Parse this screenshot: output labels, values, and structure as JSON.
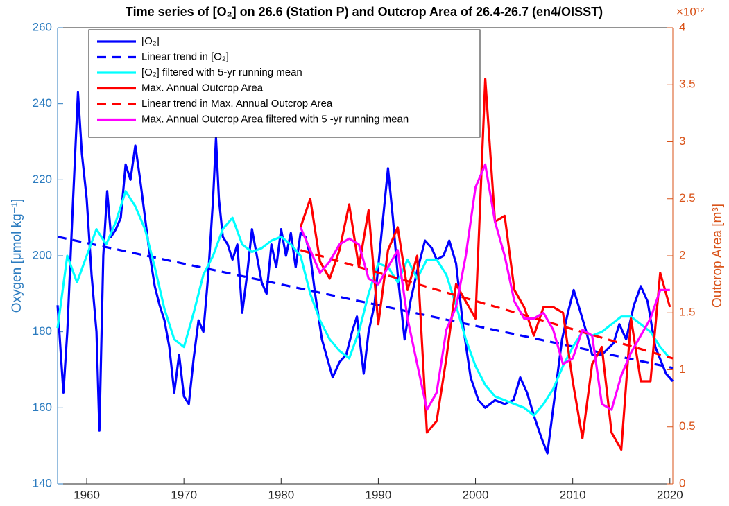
{
  "chart_data": {
    "type": "line",
    "title": "Time series of [O₂] on 26.6 (Station P) and Outcrop Area of 26.4-26.7 (en4/OISST)",
    "y_label": "Oxygen [μmol kg⁻¹]",
    "y2_label": "Outcrop Area [m³]",
    "y2_multiplier": "×10¹²",
    "xlim": [
      1957,
      2020.3
    ],
    "xticks": [
      1960,
      1970,
      1980,
      1990,
      2000,
      2010,
      2020
    ],
    "ylim": [
      140,
      260
    ],
    "yticks": [
      140,
      160,
      180,
      200,
      220,
      240,
      260
    ],
    "y2lim": [
      0,
      4
    ],
    "y2ticks": [
      0,
      0.5,
      1,
      1.5,
      2,
      2.5,
      3,
      3.5,
      4
    ],
    "legend": "top-left",
    "series": [
      {
        "name": "[O₂]",
        "color": "#0000ff",
        "line_style": "solid",
        "x": [
          1957.0,
          1957.6,
          1958.0,
          1958.6,
          1959.1,
          1959.5,
          1960.0,
          1960.5,
          1961.0,
          1961.3,
          1961.7,
          1962.1,
          1962.5,
          1963.0,
          1963.5,
          1964.0,
          1964.5,
          1965.0,
          1965.5,
          1966.0,
          1966.5,
          1967.0,
          1967.5,
          1968.0,
          1968.5,
          1969.0,
          1969.5,
          1970.0,
          1970.5,
          1971.0,
          1971.5,
          1972.0,
          1972.5,
          1973.0,
          1973.3,
          1973.6,
          1974.0,
          1974.5,
          1975.0,
          1975.5,
          1976.0,
          1976.5,
          1977.0,
          1977.5,
          1978.0,
          1978.5,
          1979.0,
          1979.5,
          1980.0,
          1980.5,
          1981.0,
          1981.5,
          1982.0,
          1982.5,
          1983.0,
          1983.5,
          1984.2,
          1985.3,
          1986.0,
          1986.7,
          1987.3,
          1987.8,
          1988.5,
          1989.0,
          1989.6,
          1990.3,
          1991.0,
          1991.5,
          1992.0,
          1992.7,
          1993.3,
          1994.0,
          1994.8,
          1995.5,
          1996.0,
          1996.7,
          1997.3,
          1998.0,
          1998.7,
          1999.5,
          2000.3,
          2001.0,
          2002.0,
          2003.0,
          2003.9,
          2004.6,
          2005.3,
          2006.0,
          2006.8,
          2007.4,
          2008.0,
          2008.9,
          2009.5,
          2010.1,
          2010.7,
          2011.4,
          2012.0,
          2013.0,
          2014.2,
          2014.8,
          2015.5,
          2016.3,
          2017.0,
          2017.7,
          2018.5,
          2019.6,
          2020.3
        ],
        "values": [
          187,
          164,
          180,
          215,
          243,
          227,
          215,
          195,
          180,
          154,
          200,
          217,
          205,
          207,
          210,
          224,
          220,
          229,
          220,
          210,
          200,
          192,
          187,
          183,
          176,
          164,
          174,
          163,
          161,
          173,
          183,
          180,
          195,
          215,
          231,
          215,
          205,
          203,
          199,
          203,
          185,
          195,
          207,
          200,
          193,
          190,
          203,
          197,
          207,
          200,
          206,
          197,
          206,
          205,
          200,
          190,
          178,
          168,
          172,
          174,
          180,
          184,
          169,
          180,
          187,
          205,
          223,
          210,
          195,
          178,
          188,
          196,
          204,
          202,
          199,
          200,
          204,
          198,
          182,
          168,
          162,
          160,
          162,
          161,
          162,
          168,
          164,
          158,
          152,
          148,
          160,
          178,
          185,
          191,
          186,
          180,
          174,
          174,
          177,
          182,
          178,
          187,
          192,
          188,
          176,
          169,
          167
        ]
      },
      {
        "name": "Linear trend in [O₂]",
        "color": "#0000ff",
        "line_style": "dashed",
        "x": [
          1957,
          2020.3
        ],
        "values": [
          205,
          170.5
        ]
      },
      {
        "name": "[O₂] filtered with 5-yr running mean",
        "color": "#00ffff",
        "line_style": "solid",
        "x": [
          1957,
          1958,
          1959,
          1960,
          1961,
          1962,
          1963,
          1964,
          1965,
          1966,
          1967,
          1968,
          1969,
          1970,
          1971,
          1972,
          1973,
          1974,
          1975,
          1976,
          1977,
          1978,
          1979,
          1980,
          1981,
          1982,
          1983,
          1984,
          1985,
          1986,
          1987,
          1988,
          1989,
          1990,
          1991,
          1992,
          1993,
          1994,
          1995,
          1996,
          1997,
          1998,
          1999,
          2000,
          2001,
          2002,
          2003,
          2004,
          2005,
          2006,
          2007,
          2008,
          2009,
          2010,
          2011,
          2012,
          2013,
          2014,
          2015,
          2016,
          2017,
          2018,
          2019,
          2020
        ],
        "values": [
          181,
          200,
          193,
          200,
          207,
          203,
          209,
          217,
          213,
          207,
          197,
          186,
          178,
          176,
          185,
          195,
          200,
          207,
          210,
          203,
          201,
          202,
          204,
          205,
          203,
          200,
          190,
          183,
          178,
          175,
          173,
          180,
          190,
          198,
          197,
          193,
          199,
          194,
          199,
          199,
          195,
          187,
          178,
          171,
          166,
          163,
          162,
          161,
          160,
          158,
          161,
          165,
          171,
          176,
          180,
          179,
          180,
          182,
          184,
          184,
          182,
          180,
          176,
          173
        ]
      },
      {
        "name": "Max. Annual Outcrop Area",
        "color": "#ff0000",
        "line_style": "solid",
        "axis": "y2",
        "x": [
          1982,
          1983,
          1984,
          1985,
          1986,
          1987,
          1988,
          1989,
          1990,
          1991,
          1992,
          1993,
          1994,
          1995,
          1996,
          1997,
          1998,
          1999,
          2000,
          2001,
          2002,
          2003,
          2004,
          2005,
          2006,
          2007,
          2008,
          2009,
          2010,
          2011,
          2012,
          2013,
          2014,
          2015,
          2016,
          2017,
          2018,
          2019,
          2020
        ],
        "values": [
          2.25,
          2.5,
          1.95,
          1.8,
          2.05,
          2.45,
          1.9,
          2.4,
          1.4,
          2.05,
          2.25,
          1.7,
          2.0,
          0.45,
          0.55,
          1.1,
          1.75,
          1.6,
          1.45,
          3.55,
          2.3,
          2.35,
          1.7,
          1.55,
          1.3,
          1.55,
          1.55,
          1.5,
          0.9,
          0.4,
          1.05,
          1.2,
          0.45,
          0.3,
          1.45,
          0.9,
          0.9,
          1.85,
          1.55
        ]
      },
      {
        "name": "Linear trend in Max. Annual Outcrop Area",
        "color": "#ff0000",
        "line_style": "dashed",
        "axis": "y2",
        "x": [
          1982,
          2020.3
        ],
        "values": [
          2.05,
          1.1
        ]
      },
      {
        "name": "Max. Annual Outcrop Area filtered with 5 -yr running mean",
        "color": "#ff00ff",
        "line_style": "solid",
        "axis": "y2",
        "x": [
          1982,
          1983,
          1984,
          1985,
          1986,
          1987,
          1988,
          1989,
          1990,
          1991,
          1992,
          1993,
          1994,
          1995,
          1996,
          1997,
          1998,
          1999,
          2000,
          2001,
          2002,
          2003,
          2004,
          2005,
          2006,
          2007,
          2008,
          2009,
          2010,
          2011,
          2012,
          2013,
          2014,
          2015,
          2016,
          2017,
          2018,
          2019,
          2020
        ],
        "values": [
          2.25,
          2.05,
          1.85,
          1.95,
          2.1,
          2.15,
          2.1,
          1.8,
          1.75,
          1.9,
          2.05,
          1.45,
          1.05,
          0.65,
          0.8,
          1.35,
          1.55,
          2.0,
          2.6,
          2.8,
          2.3,
          2.0,
          1.6,
          1.45,
          1.45,
          1.5,
          1.35,
          1.05,
          1.1,
          1.35,
          1.3,
          0.7,
          0.65,
          0.95,
          1.15,
          1.3,
          1.45,
          1.7,
          1.7
        ]
      }
    ]
  }
}
